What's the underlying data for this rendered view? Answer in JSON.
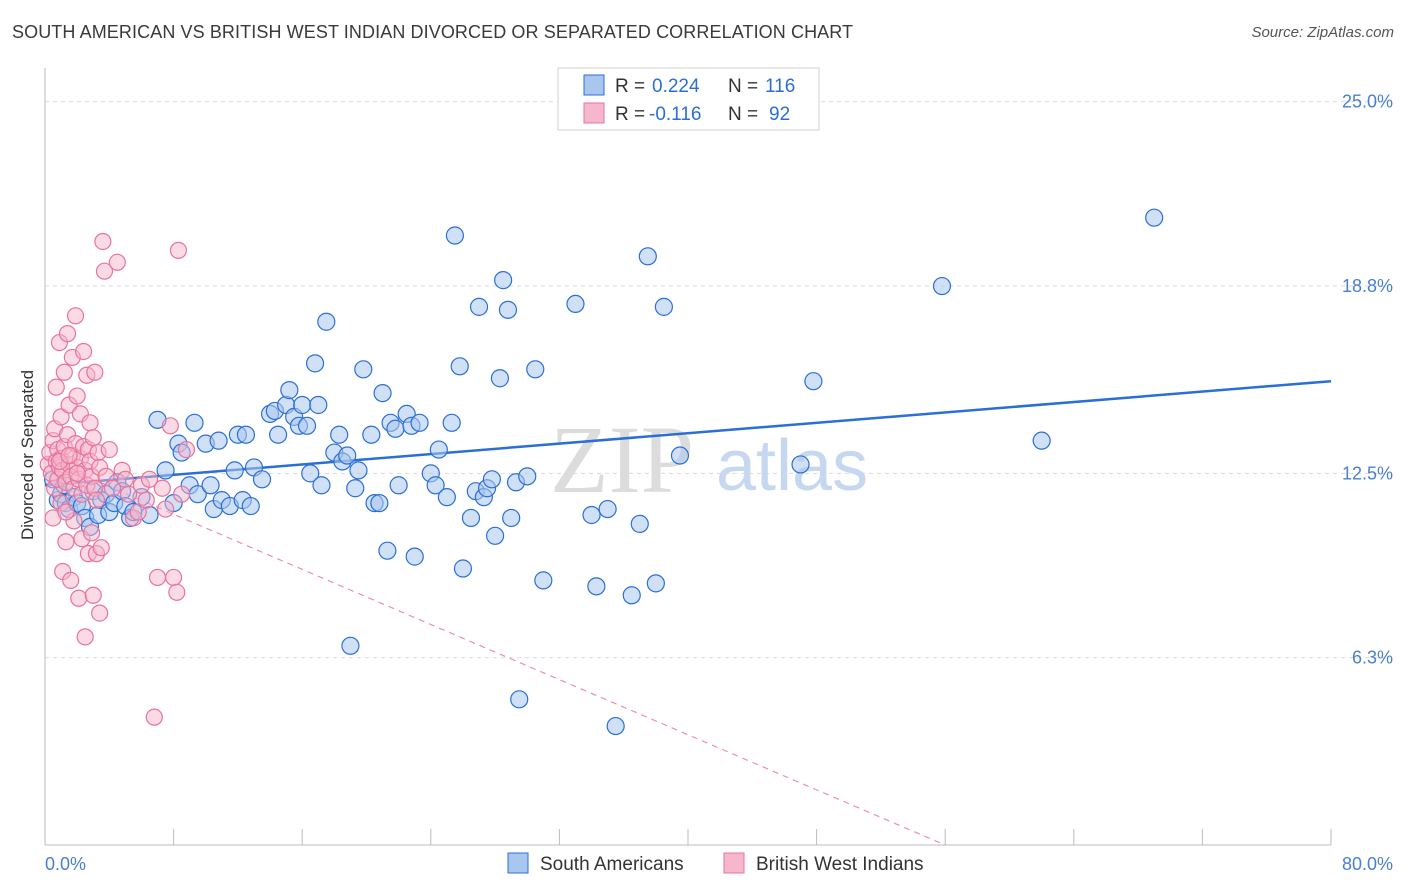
{
  "title": "SOUTH AMERICAN VS BRITISH WEST INDIAN DIVORCED OR SEPARATED CORRELATION CHART",
  "source": "Source: ZipAtlas.com",
  "watermark": {
    "zip": "ZIP",
    "atlas": "atlas"
  },
  "colors": {
    "blue": "#2b6fd6",
    "blue_fill": "#a9c6ef",
    "pink": "#e8739b",
    "pink_fill": "#f6b6cb",
    "grid": "#d9d9d9"
  },
  "legend": {
    "rows": [
      {
        "r_label": "R =",
        "r_value": "0.224",
        "n_label": "N =",
        "n_value": "116"
      },
      {
        "r_label": "R =",
        "r_value": "-0.116",
        "n_label": "N =",
        "n_value": "92"
      }
    ]
  },
  "bottom_legend": [
    "South Americans",
    "British West Indians"
  ],
  "chart_data": {
    "type": "scatter",
    "title": "SOUTH AMERICAN VS BRITISH WEST INDIAN DIVORCED OR SEPARATED CORRELATION CHART",
    "xlabel": "",
    "ylabel": "Divorced or Separated",
    "xlim": [
      0,
      80
    ],
    "ylim": [
      0,
      26
    ],
    "x_tick_labels": [
      "0.0%",
      "80.0%"
    ],
    "y_ticks": [
      6.3,
      12.5,
      18.8,
      25.0
    ],
    "y_tick_labels": [
      "6.3%",
      "12.5%",
      "18.8%",
      "25.0%"
    ],
    "grid": true,
    "legend_position": "top-center",
    "series": [
      {
        "name": "South Americans",
        "color": "#2b6fd6",
        "trend": {
          "x": [
            0,
            80
          ],
          "y": [
            12.1,
            15.6
          ]
        },
        "points": [
          [
            0.5,
            12.3
          ],
          [
            0.8,
            11.6
          ],
          [
            1.0,
            11.8
          ],
          [
            1.2,
            12.1
          ],
          [
            1.3,
            11.5
          ],
          [
            1.5,
            11.3
          ],
          [
            1.8,
            11.7
          ],
          [
            2.0,
            11.5
          ],
          [
            2.3,
            11.4
          ],
          [
            2.5,
            11.0
          ],
          [
            2.8,
            10.7
          ],
          [
            3.0,
            11.9
          ],
          [
            3.3,
            11.1
          ],
          [
            3.5,
            11.6
          ],
          [
            3.8,
            11.8
          ],
          [
            4.0,
            11.2
          ],
          [
            4.3,
            11.5
          ],
          [
            4.5,
            12.2
          ],
          [
            4.8,
            11.9
          ],
          [
            5.0,
            11.4
          ],
          [
            5.3,
            11.0
          ],
          [
            5.5,
            11.2
          ],
          [
            6.0,
            11.7
          ],
          [
            6.5,
            11.1
          ],
          [
            7.0,
            14.3
          ],
          [
            7.5,
            12.6
          ],
          [
            8.0,
            11.5
          ],
          [
            8.3,
            13.5
          ],
          [
            8.5,
            13.2
          ],
          [
            9.0,
            12.1
          ],
          [
            9.3,
            14.2
          ],
          [
            9.5,
            11.8
          ],
          [
            10.0,
            13.5
          ],
          [
            10.3,
            12.1
          ],
          [
            10.5,
            11.3
          ],
          [
            10.8,
            13.6
          ],
          [
            11.0,
            11.6
          ],
          [
            11.5,
            11.4
          ],
          [
            11.8,
            12.6
          ],
          [
            12.0,
            13.8
          ],
          [
            12.3,
            11.6
          ],
          [
            12.5,
            13.8
          ],
          [
            12.8,
            11.4
          ],
          [
            13.0,
            12.7
          ],
          [
            13.5,
            12.3
          ],
          [
            14.0,
            14.5
          ],
          [
            14.3,
            14.6
          ],
          [
            14.5,
            13.8
          ],
          [
            15.0,
            14.8
          ],
          [
            15.2,
            15.3
          ],
          [
            15.5,
            14.4
          ],
          [
            15.8,
            14.1
          ],
          [
            16.0,
            14.8
          ],
          [
            16.3,
            14.1
          ],
          [
            16.5,
            12.5
          ],
          [
            16.8,
            16.2
          ],
          [
            17.0,
            14.8
          ],
          [
            17.2,
            12.1
          ],
          [
            17.5,
            17.6
          ],
          [
            18.0,
            13.2
          ],
          [
            18.3,
            13.8
          ],
          [
            18.5,
            12.9
          ],
          [
            18.8,
            13.1
          ],
          [
            19.0,
            6.7
          ],
          [
            19.3,
            12.0
          ],
          [
            19.5,
            12.6
          ],
          [
            19.8,
            16.0
          ],
          [
            20.3,
            13.8
          ],
          [
            20.5,
            11.5
          ],
          [
            20.8,
            11.5
          ],
          [
            21.0,
            15.2
          ],
          [
            21.3,
            9.9
          ],
          [
            21.5,
            14.2
          ],
          [
            21.8,
            14.0
          ],
          [
            22.0,
            12.1
          ],
          [
            22.5,
            14.5
          ],
          [
            22.8,
            14.1
          ],
          [
            23.0,
            9.7
          ],
          [
            23.3,
            14.2
          ],
          [
            24.0,
            12.5
          ],
          [
            24.3,
            12.1
          ],
          [
            24.5,
            13.3
          ],
          [
            25.0,
            11.7
          ],
          [
            25.3,
            14.2
          ],
          [
            25.5,
            20.5
          ],
          [
            25.8,
            16.1
          ],
          [
            26.0,
            9.3
          ],
          [
            26.5,
            11.0
          ],
          [
            26.8,
            11.9
          ],
          [
            27.0,
            18.1
          ],
          [
            27.3,
            11.7
          ],
          [
            27.5,
            12.0
          ],
          [
            27.8,
            12.3
          ],
          [
            28.0,
            10.4
          ],
          [
            28.3,
            15.7
          ],
          [
            28.5,
            19.0
          ],
          [
            28.8,
            18.0
          ],
          [
            29.0,
            11.0
          ],
          [
            29.3,
            12.2
          ],
          [
            29.5,
            4.9
          ],
          [
            30.0,
            12.4
          ],
          [
            30.5,
            16.0
          ],
          [
            31.0,
            8.9
          ],
          [
            33.0,
            18.2
          ],
          [
            34.0,
            11.1
          ],
          [
            34.3,
            8.7
          ],
          [
            35.0,
            11.3
          ],
          [
            35.5,
            4.0
          ],
          [
            36.5,
            8.4
          ],
          [
            37.0,
            10.8
          ],
          [
            37.5,
            19.8
          ],
          [
            38.0,
            8.8
          ],
          [
            38.5,
            18.1
          ],
          [
            39.5,
            13.1
          ],
          [
            47.0,
            12.8
          ],
          [
            47.8,
            15.6
          ],
          [
            55.8,
            18.8
          ],
          [
            62.0,
            13.6
          ],
          [
            69.0,
            21.1
          ]
        ]
      },
      {
        "name": "British West Indians",
        "color": "#e8739b",
        "trend_solid": {
          "x": [
            0,
            2.5
          ],
          "y": [
            13.0,
            12.4
          ]
        },
        "trend_dashed": {
          "x": [
            2.5,
            56
          ],
          "y": [
            12.4,
            0
          ]
        },
        "points": [
          [
            0.2,
            12.8
          ],
          [
            0.3,
            13.2
          ],
          [
            0.4,
            12.5
          ],
          [
            0.5,
            13.6
          ],
          [
            0.5,
            11.0
          ],
          [
            0.6,
            12.0
          ],
          [
            0.6,
            14.0
          ],
          [
            0.7,
            12.9
          ],
          [
            0.7,
            15.4
          ],
          [
            0.8,
            13.3
          ],
          [
            0.8,
            12.3
          ],
          [
            0.9,
            12.7
          ],
          [
            0.9,
            16.9
          ],
          [
            1.0,
            13.0
          ],
          [
            1.0,
            11.5
          ],
          [
            1.0,
            14.4
          ],
          [
            1.1,
            12.6
          ],
          [
            1.1,
            9.2
          ],
          [
            1.2,
            13.4
          ],
          [
            1.2,
            15.9
          ],
          [
            1.3,
            12.2
          ],
          [
            1.3,
            10.2
          ],
          [
            1.4,
            13.8
          ],
          [
            1.4,
            17.2
          ],
          [
            1.5,
            12.8
          ],
          [
            1.5,
            14.8
          ],
          [
            1.6,
            12.4
          ],
          [
            1.6,
            8.9
          ],
          [
            1.7,
            13.1
          ],
          [
            1.7,
            16.4
          ],
          [
            1.8,
            12.0
          ],
          [
            1.8,
            10.9
          ],
          [
            1.9,
            13.5
          ],
          [
            1.9,
            17.8
          ],
          [
            2.0,
            12.7
          ],
          [
            2.0,
            15.1
          ],
          [
            2.1,
            12.3
          ],
          [
            2.1,
            8.3
          ],
          [
            2.2,
            13.0
          ],
          [
            2.2,
            14.5
          ],
          [
            2.3,
            11.8
          ],
          [
            2.3,
            10.3
          ],
          [
            2.4,
            13.4
          ],
          [
            2.4,
            16.6
          ],
          [
            2.5,
            12.6
          ],
          [
            2.5,
            7.0
          ],
          [
            2.6,
            12.1
          ],
          [
            2.6,
            15.8
          ],
          [
            2.7,
            13.3
          ],
          [
            2.7,
            9.8
          ],
          [
            2.8,
            12.9
          ],
          [
            2.8,
            14.2
          ],
          [
            2.9,
            12.4
          ],
          [
            2.9,
            10.5
          ],
          [
            3.0,
            13.7
          ],
          [
            3.0,
            8.4
          ],
          [
            3.1,
            12.0
          ],
          [
            3.1,
            15.9
          ],
          [
            3.2,
            11.6
          ],
          [
            3.2,
            9.8
          ],
          [
            3.3,
            13.2
          ],
          [
            3.4,
            12.7
          ],
          [
            3.4,
            7.8
          ],
          [
            3.5,
            10.0
          ],
          [
            3.6,
            20.3
          ],
          [
            3.7,
            19.3
          ],
          [
            3.8,
            12.4
          ],
          [
            4.0,
            13.3
          ],
          [
            4.2,
            12.0
          ],
          [
            4.5,
            19.6
          ],
          [
            4.8,
            12.6
          ],
          [
            5.0,
            12.3
          ],
          [
            5.2,
            11.8
          ],
          [
            5.5,
            11.0
          ],
          [
            5.8,
            11.2
          ],
          [
            6.0,
            12.1
          ],
          [
            6.3,
            11.6
          ],
          [
            6.5,
            12.3
          ],
          [
            6.8,
            4.3
          ],
          [
            7.0,
            9.0
          ],
          [
            7.3,
            12.0
          ],
          [
            7.5,
            11.3
          ],
          [
            7.8,
            14.1
          ],
          [
            8.0,
            9.0
          ],
          [
            8.2,
            8.5
          ],
          [
            8.3,
            20.0
          ],
          [
            8.5,
            11.8
          ],
          [
            8.8,
            13.3
          ],
          [
            1.3,
            11.2
          ],
          [
            0.9,
            12.9
          ],
          [
            1.5,
            13.1
          ],
          [
            2.0,
            12.5
          ]
        ]
      }
    ]
  }
}
